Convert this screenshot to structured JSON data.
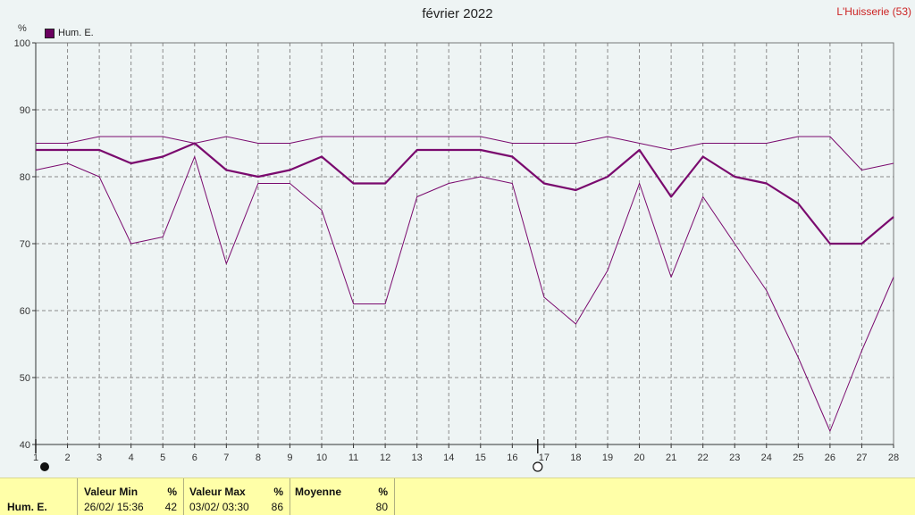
{
  "header": {
    "title": "février 2022",
    "station": "L'Huisserie (53)",
    "unit": "%",
    "legend_label": "Hum. E."
  },
  "chart_data": {
    "type": "line",
    "title": "février 2022",
    "ylim": [
      40,
      100
    ],
    "yticks": [
      40,
      50,
      60,
      70,
      80,
      90,
      100
    ],
    "xlim": [
      1,
      28
    ],
    "x": [
      1,
      2,
      3,
      4,
      5,
      6,
      7,
      8,
      9,
      10,
      11,
      12,
      13,
      14,
      15,
      16,
      17,
      18,
      19,
      20,
      21,
      22,
      23,
      24,
      25,
      26,
      27,
      28
    ],
    "grid": true,
    "legend": "top-left",
    "colors": {
      "series": "#7a0a6e",
      "grid": "#8a8a8a",
      "axis": "#333333"
    },
    "series": [
      {
        "name": "Hum. E.",
        "role": "max",
        "values": [
          85,
          85,
          86,
          86,
          86,
          85,
          86,
          85,
          85,
          86,
          86,
          86,
          86,
          86,
          86,
          85,
          85,
          85,
          86,
          85,
          84,
          85,
          85,
          85,
          86,
          86,
          81,
          82
        ]
      },
      {
        "name": "Hum. E.",
        "role": "mean",
        "values": [
          84,
          84,
          84,
          82,
          83,
          85,
          81,
          80,
          81,
          83,
          79,
          79,
          84,
          84,
          84,
          83,
          79,
          78,
          80,
          84,
          77,
          83,
          80,
          79,
          76,
          70,
          70,
          74
        ]
      },
      {
        "name": "Hum. E.",
        "role": "min",
        "values": [
          81,
          82,
          80,
          70,
          71,
          83,
          67,
          79,
          79,
          75,
          61,
          61,
          77,
          79,
          80,
          79,
          62,
          58,
          66,
          79,
          65,
          77,
          70,
          63,
          53,
          42,
          54,
          65
        ]
      }
    ],
    "moon_markers": [
      {
        "x": 1,
        "phase": "new-moon"
      },
      {
        "x": 16.8,
        "phase": "full-moon"
      }
    ]
  },
  "footer": {
    "row_label": "Hum. E.",
    "min": {
      "header": "Valeur Min",
      "unit": "%",
      "when": "26/02/  15:36",
      "value": "42"
    },
    "max": {
      "header": "Valeur Max",
      "unit": "%",
      "when": "03/02/  03:30",
      "value": "86"
    },
    "mean": {
      "header": "Moyenne",
      "unit": "%",
      "value": "80"
    }
  }
}
